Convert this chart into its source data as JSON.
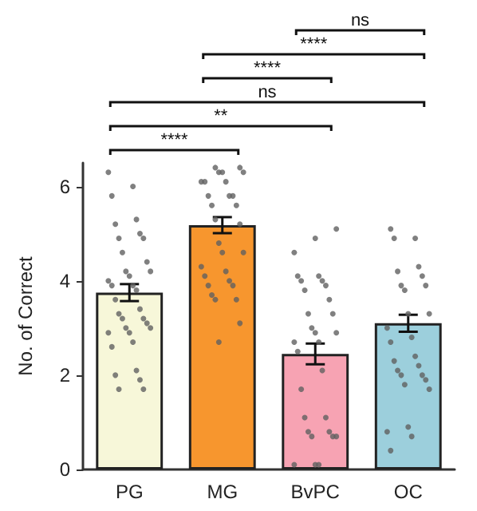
{
  "chart_data": {
    "type": "bar",
    "ylabel": "No. of Correct",
    "categories": [
      "PG",
      "MG",
      "BvPC",
      "OC"
    ],
    "series": [
      {
        "values": [
          3.75,
          5.18,
          2.45,
          3.1
        ],
        "colors": [
          "#f7f7d9",
          "#f7962e",
          "#f7a3b3",
          "#9ccfdc"
        ],
        "errors": [
          0.18,
          0.17,
          0.22,
          0.18
        ]
      },
      {
        "type": "scatter",
        "color": "#606060",
        "x": [
          "PG",
          "PG",
          "PG",
          "PG",
          "PG",
          "PG",
          "PG",
          "PG",
          "PG",
          "PG",
          "PG",
          "PG",
          "PG",
          "PG",
          "PG",
          "PG",
          "PG",
          "PG",
          "PG",
          "PG",
          "PG",
          "PG",
          "PG",
          "PG",
          "PG",
          "PG",
          "PG",
          "PG",
          "PG",
          "PG",
          "PG",
          "PG",
          "PG",
          "PG",
          "MG",
          "MG",
          "MG",
          "MG",
          "MG",
          "MG",
          "MG",
          "MG",
          "MG",
          "MG",
          "MG",
          "MG",
          "MG",
          "MG",
          "MG",
          "MG",
          "MG",
          "MG",
          "MG",
          "MG",
          "MG",
          "MG",
          "MG",
          "MG",
          "MG",
          "MG",
          "MG",
          "MG",
          "MG",
          "BvPC",
          "BvPC",
          "BvPC",
          "BvPC",
          "BvPC",
          "BvPC",
          "BvPC",
          "BvPC",
          "BvPC",
          "BvPC",
          "BvPC",
          "BvPC",
          "BvPC",
          "BvPC",
          "BvPC",
          "BvPC",
          "BvPC",
          "BvPC",
          "BvPC",
          "BvPC",
          "BvPC",
          "BvPC",
          "BvPC",
          "BvPC",
          "BvPC",
          "BvPC",
          "BvPC",
          "BvPC",
          "BvPC",
          "BvPC",
          "OC",
          "OC",
          "OC",
          "OC",
          "OC",
          "OC",
          "OC",
          "OC",
          "OC",
          "OC",
          "OC",
          "OC",
          "OC",
          "OC",
          "OC",
          "OC",
          "OC",
          "OC",
          "OC",
          "OC",
          "OC",
          "OC",
          "OC",
          "OC",
          "OC",
          "OC",
          "OC"
        ],
        "values": [
          6.3,
          6.0,
          5.8,
          5.3,
          5.2,
          5.0,
          4.9,
          4.9,
          4.6,
          4.4,
          4.2,
          4.2,
          4.1,
          4.0,
          3.9,
          3.9,
          3.8,
          3.6,
          3.4,
          3.3,
          3.2,
          3.2,
          3.1,
          3.0,
          3.0,
          2.9,
          2.9,
          2.7,
          2.6,
          2.1,
          2.0,
          1.9,
          1.7,
          1.7,
          6.4,
          6.4,
          6.3,
          6.3,
          6.3,
          6.1,
          6.1,
          6.1,
          5.8,
          5.8,
          5.8,
          5.6,
          5.6,
          5.3,
          5.2,
          4.8,
          4.6,
          4.6,
          4.3,
          4.2,
          4.1,
          4.0,
          3.9,
          3.9,
          3.7,
          3.6,
          3.6,
          3.1,
          2.7,
          5.1,
          4.9,
          4.6,
          4.1,
          4.1,
          4.0,
          4.0,
          3.9,
          3.8,
          3.6,
          3.3,
          3.3,
          3.0,
          2.9,
          2.9,
          2.7,
          2.7,
          2.5,
          2.1,
          1.7,
          1.1,
          1.1,
          0.8,
          0.8,
          0.7,
          0.7,
          0.7,
          0.1,
          0.1,
          0.1,
          5.1,
          4.9,
          4.9,
          4.3,
          4.2,
          4.1,
          3.9,
          3.9,
          3.8,
          3.3,
          3.3,
          3.0,
          2.8,
          2.7,
          2.4,
          2.3,
          2.2,
          2.1,
          2.0,
          2.0,
          1.9,
          1.8,
          1.7,
          0.9,
          0.8,
          0.7,
          0.4
        ]
      }
    ],
    "ylim": [
      0,
      6.5
    ],
    "yticks": [
      0,
      2,
      4,
      6
    ],
    "grid": false,
    "marker": "circle",
    "annotations": [
      "ns",
      "****",
      "****",
      "ns",
      "**",
      "****"
    ]
  }
}
